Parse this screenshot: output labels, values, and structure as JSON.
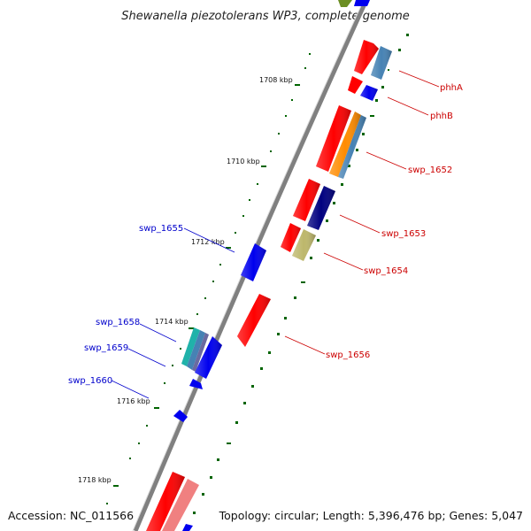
{
  "title": "Shewanella piezotolerans WP3, complete genome",
  "footer": {
    "accession": "Accession: NC_011566",
    "summary": "Topology: circular; Length: 5,396,476 bp; Genes: 5,047"
  },
  "ticks": [
    "1708 kbp",
    "1710 kbp",
    "1712 kbp",
    "1714 kbp",
    "1716 kbp",
    "1718 kbp"
  ],
  "genes_right": [
    "phhA",
    "phhB",
    "swp_1652",
    "swp_1653",
    "swp_1654",
    "swp_1656"
  ],
  "genes_left": [
    "swp_1655",
    "swp_1658",
    "swp_1659",
    "swp_1660"
  ],
  "colors": {
    "red": "#ff0000",
    "blue": "#0000ee",
    "steel": "#4682b4",
    "orange": "#ff8c00",
    "navy": "#000080",
    "khaki": "#bdb76b",
    "teal": "#20b2aa",
    "salmon": "#f08080",
    "olive": "#6b8e23",
    "backbone": "#808080",
    "tick": "#006400",
    "label_red": "#cc0000",
    "label_blue": "#0000cc"
  }
}
